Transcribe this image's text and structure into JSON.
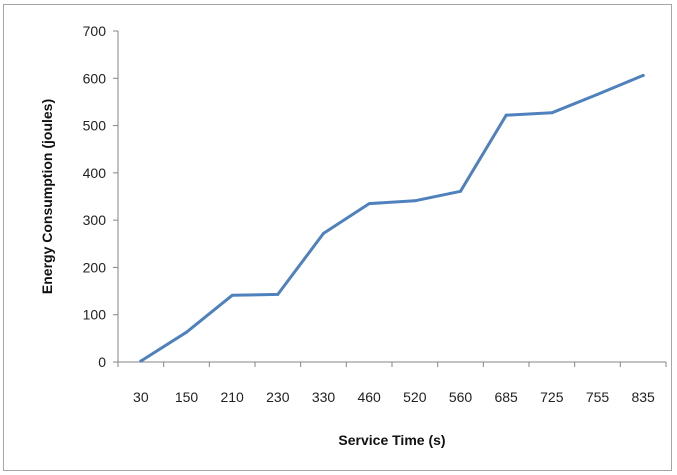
{
  "chart_data": {
    "type": "line",
    "title": "",
    "xlabel": "Service Time (s)",
    "ylabel": "Energy Consumption  (joules)",
    "categories": [
      "30",
      "150",
      "210",
      "230",
      "330",
      "460",
      "520",
      "560",
      "685",
      "725",
      "755",
      "835"
    ],
    "series": [
      {
        "values": [
          2,
          63,
          141,
          143,
          272,
          335,
          341,
          361,
          522,
          527,
          566,
          606
        ]
      }
    ],
    "ylim": [
      0,
      700
    ],
    "yticks": [
      0,
      100,
      200,
      300,
      400,
      500,
      600,
      700
    ],
    "grid": false,
    "legend": "none",
    "line_color": "#4f81bd"
  }
}
